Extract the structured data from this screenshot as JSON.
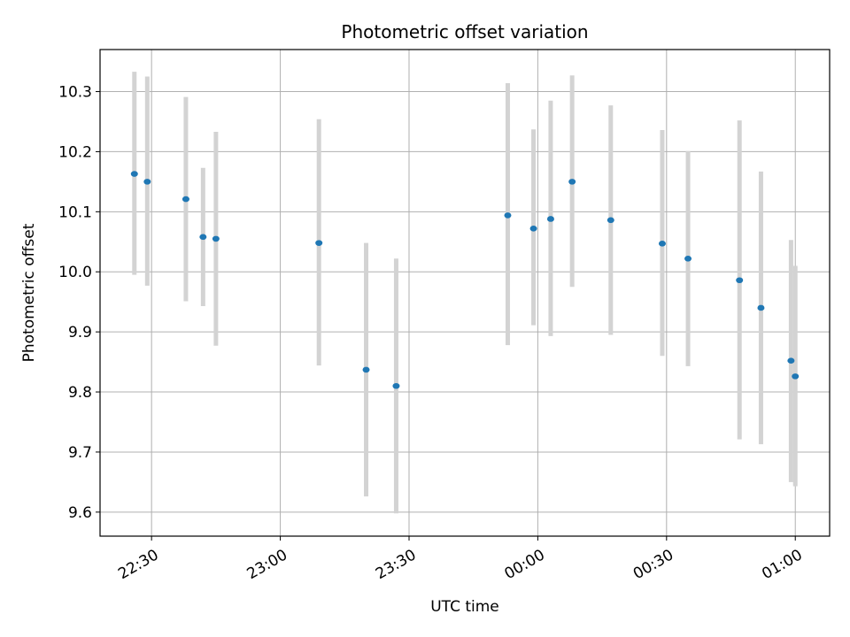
{
  "chart_data": {
    "type": "scatter",
    "title": "Photometric offset variation",
    "xlabel": "UTC time",
    "ylabel": "Photometric offset",
    "x_ticks": [
      "22:30",
      "23:00",
      "23:30",
      "00:00",
      "00:30",
      "01:00"
    ],
    "y_ticks": [
      "9.6",
      "9.7",
      "9.8",
      "9.9",
      "10.0",
      "10.1",
      "10.2",
      "10.3"
    ],
    "ylim": [
      9.56,
      10.37
    ],
    "xlim": [
      "22:18",
      "01:08"
    ],
    "grid": true,
    "errorbar_color": "#d3d3d3",
    "point_color": "#1f77b4",
    "points": [
      {
        "x": "22:26",
        "y": 10.163,
        "y_low": 9.995,
        "y_high": 10.333
      },
      {
        "x": "22:29",
        "y": 10.15,
        "y_low": 9.977,
        "y_high": 10.325
      },
      {
        "x": "22:38",
        "y": 10.121,
        "y_low": 9.951,
        "y_high": 10.291
      },
      {
        "x": "22:42",
        "y": 10.058,
        "y_low": 9.943,
        "y_high": 10.173
      },
      {
        "x": "22:45",
        "y": 10.055,
        "y_low": 9.877,
        "y_high": 10.233
      },
      {
        "x": "23:09",
        "y": 10.048,
        "y_low": 9.844,
        "y_high": 10.254
      },
      {
        "x": "23:20",
        "y": 9.837,
        "y_low": 9.626,
        "y_high": 10.048
      },
      {
        "x": "23:27",
        "y": 9.81,
        "y_low": 9.598,
        "y_high": 10.022
      },
      {
        "x": "23:53",
        "y": 10.094,
        "y_low": 9.878,
        "y_high": 10.314
      },
      {
        "x": "23:59",
        "y": 10.072,
        "y_low": 9.911,
        "y_high": 10.237
      },
      {
        "x": "00:03",
        "y": 10.088,
        "y_low": 9.893,
        "y_high": 10.285
      },
      {
        "x": "00:08",
        "y": 10.15,
        "y_low": 9.975,
        "y_high": 10.327
      },
      {
        "x": "00:17",
        "y": 10.086,
        "y_low": 9.895,
        "y_high": 10.277
      },
      {
        "x": "00:29",
        "y": 10.047,
        "y_low": 9.86,
        "y_high": 10.236
      },
      {
        "x": "00:35",
        "y": 10.022,
        "y_low": 9.843,
        "y_high": 10.201
      },
      {
        "x": "00:47",
        "y": 9.986,
        "y_low": 9.721,
        "y_high": 10.252
      },
      {
        "x": "00:52",
        "y": 9.94,
        "y_low": 9.713,
        "y_high": 10.167
      },
      {
        "x": "00:59",
        "y": 9.852,
        "y_low": 9.65,
        "y_high": 10.053
      },
      {
        "x": "01:00",
        "y": 9.826,
        "y_low": 9.643,
        "y_high": 10.01
      }
    ]
  }
}
